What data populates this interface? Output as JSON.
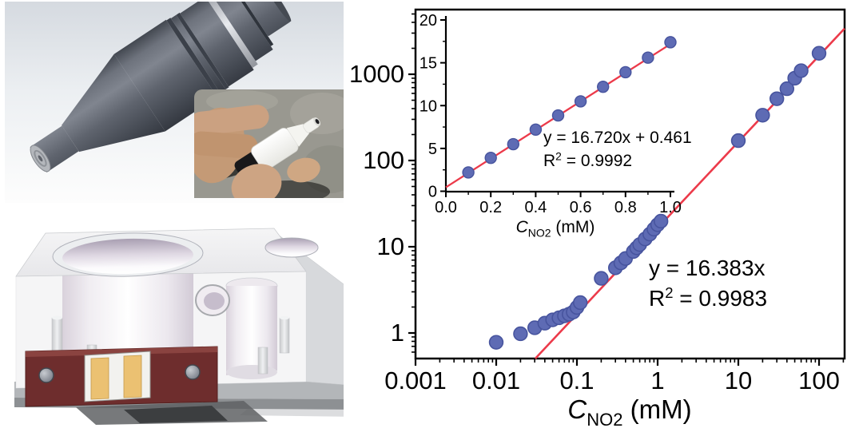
{
  "figure": {
    "kind": "scientific-figure",
    "background": "#ffffff"
  },
  "panels": {
    "sensor_cad": {
      "description": "3D CAD render of a cylindrical gas sensor probe",
      "body_color": "#575c66",
      "background_top": "#d8dde2"
    },
    "sensor_photo": {
      "description": "Photograph of a hand holding the white sensor tip",
      "background": "#999890",
      "device_color": "#f4f4f0"
    },
    "flow_cell_cad": {
      "description": "3D CAD render of translucent flow-cell block with electrode board",
      "pcb_color": "#6e2d2d",
      "pad_color": "#ebc172",
      "base_color": "#b3b6b9"
    }
  },
  "chart_data": [
    {
      "type": "scatter",
      "name": "main-log-log-calibration",
      "xscale": "log",
      "yscale": "log",
      "xlim": [
        0.001,
        207
      ],
      "ylim": [
        0.5,
        5600
      ],
      "grid": false,
      "legend": null,
      "xlabel": {
        "var": "C",
        "sub": "NO2",
        "unit": " (mM)"
      },
      "ylabel": null,
      "x_ticks": {
        "values": [
          0.001,
          0.01,
          0.1,
          1,
          10,
          100
        ],
        "labels": [
          "0.001",
          "0.01",
          "0.1",
          "1",
          "10",
          "100"
        ]
      },
      "y_ticks": {
        "values": [
          1,
          10,
          100,
          1000
        ],
        "labels": [
          "1",
          "10",
          "100",
          "1000"
        ]
      },
      "annotation": {
        "equation": "y = 16.383x",
        "r_squared": "R² = 0.9983"
      },
      "fit": {
        "slope": 16.383,
        "intercept": 0,
        "x_start": 0.0305,
        "x_end": 207
      },
      "points": [
        [
          0.01,
          0.78
        ],
        [
          0.02,
          0.98
        ],
        [
          0.03,
          1.15
        ],
        [
          0.04,
          1.3
        ],
        [
          0.05,
          1.42
        ],
        [
          0.06,
          1.5
        ],
        [
          0.07,
          1.58
        ],
        [
          0.08,
          1.65
        ],
        [
          0.09,
          1.75
        ],
        [
          0.1,
          1.98
        ],
        [
          0.11,
          2.25
        ],
        [
          0.2,
          4.3
        ],
        [
          0.3,
          5.7
        ],
        [
          0.35,
          6.5
        ],
        [
          0.4,
          7.3
        ],
        [
          0.5,
          8.8
        ],
        [
          0.55,
          9.7
        ],
        [
          0.6,
          10.6
        ],
        [
          0.7,
          12.3
        ],
        [
          0.8,
          14.0
        ],
        [
          0.9,
          16.0
        ],
        [
          1.0,
          18.0
        ],
        [
          1.1,
          19.8
        ],
        [
          10,
          170
        ],
        [
          20,
          335
        ],
        [
          30,
          520
        ],
        [
          40,
          680
        ],
        [
          50,
          900
        ],
        [
          60,
          1100
        ],
        [
          100,
          1750
        ]
      ],
      "style": {
        "marker_fill": "#5e6bb4",
        "marker_edge": "#47549e",
        "line_color": "#ec3a4a",
        "axis_color": "#000000"
      }
    },
    {
      "type": "scatter",
      "name": "inset-linear-calibration",
      "xscale": "linear",
      "yscale": "linear",
      "xlim": [
        0,
        1.01
      ],
      "ylim": [
        0,
        20
      ],
      "grid": false,
      "legend": null,
      "xlabel": {
        "var": "C",
        "sub": "NO2",
        "unit": " (mM)"
      },
      "ylabel": null,
      "x_ticks": {
        "values": [
          0,
          0.2,
          0.4,
          0.6,
          0.8,
          1.0
        ],
        "labels": [
          "0.0",
          "0.2",
          "0.4",
          "0.6",
          "0.8",
          "1.0"
        ],
        "minor": [
          0.1,
          0.3,
          0.5,
          0.7,
          0.9
        ]
      },
      "y_ticks": {
        "values": [
          0,
          5,
          10,
          15,
          20
        ],
        "labels": [
          "0",
          "5",
          "10",
          "15",
          "20"
        ],
        "minor": [
          2.5,
          7.5,
          12.5,
          17.5
        ]
      },
      "annotation": {
        "equation": "y = 16.720x + 0.461",
        "r_squared": "R² = 0.9992"
      },
      "fit": {
        "slope": 16.72,
        "intercept": 0.461,
        "x_start": 0,
        "x_end": 1.01
      },
      "points": [
        [
          0.1,
          2.2
        ],
        [
          0.2,
          3.9
        ],
        [
          0.3,
          5.5
        ],
        [
          0.4,
          7.2
        ],
        [
          0.5,
          8.85
        ],
        [
          0.6,
          10.5
        ],
        [
          0.7,
          12.2
        ],
        [
          0.8,
          13.9
        ],
        [
          0.9,
          15.6
        ],
        [
          1.0,
          17.4
        ]
      ],
      "style": {
        "marker_fill": "#5e6bb4",
        "marker_edge": "#47549e",
        "line_color": "#ec3a4a",
        "axis_color": "#000000"
      }
    }
  ]
}
